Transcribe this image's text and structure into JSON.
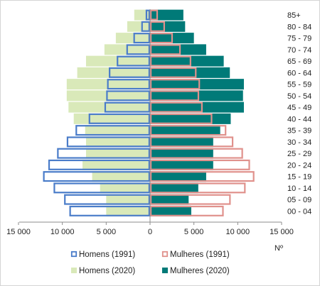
{
  "chart_data": {
    "type": "bar",
    "orientation": "horizontal",
    "layout": "population-pyramid",
    "title": "",
    "xlabel": "Nº",
    "ylabel": "",
    "xlim": [
      -15000,
      15000
    ],
    "x_ticks": [
      -15000,
      -10000,
      -5000,
      0,
      5000,
      10000,
      15000
    ],
    "x_tick_labels": [
      "15 000",
      "10 000",
      "5 000",
      "0",
      "5 000",
      "10 000",
      "15 000"
    ],
    "categories": [
      "85+",
      "80 - 84",
      "75 - 79",
      "70 - 74",
      "65 - 69",
      "60 - 64",
      "55 - 59",
      "50 - 54",
      "45 - 49",
      "40 - 44",
      "35 - 39",
      "30 - 34",
      "25 - 29",
      "20 - 24",
      "15 - 19",
      "10 - 14",
      "05 - 09",
      "00 - 04"
    ],
    "grid": false,
    "legend_position": "bottom",
    "series": [
      {
        "name": "Homens (1991)",
        "side": "left",
        "style": "outline",
        "color": "#4a7cc9",
        "values": [
          500,
          1000,
          1900,
          2700,
          3800,
          4700,
          4900,
          5000,
          5200,
          7000,
          8500,
          9500,
          10600,
          11600,
          12200,
          11000,
          9800,
          9200
        ]
      },
      {
        "name": "Mulheres (1991)",
        "side": "right",
        "style": "outline",
        "color": "#e0918c",
        "values": [
          900,
          1700,
          2600,
          3500,
          4700,
          5300,
          5700,
          5600,
          6000,
          7100,
          8700,
          9500,
          10600,
          11400,
          11900,
          10900,
          9200,
          8400
        ]
      },
      {
        "name": "Homens (2020)",
        "side": "left",
        "style": "filled",
        "color": "#d9e9b9",
        "values": [
          1800,
          2600,
          3900,
          5200,
          7300,
          8300,
          9500,
          9500,
          9300,
          8700,
          7400,
          7300,
          7300,
          7700,
          6600,
          5700,
          5000,
          5000
        ]
      },
      {
        "name": "Mulheres (2020)",
        "side": "right",
        "style": "filled",
        "color": "#007a78",
        "values": [
          3800,
          4000,
          5000,
          6400,
          8400,
          9100,
          10700,
          10600,
          10700,
          9200,
          8000,
          7200,
          7200,
          7200,
          6400,
          5500,
          4400,
          4700
        ]
      }
    ]
  }
}
